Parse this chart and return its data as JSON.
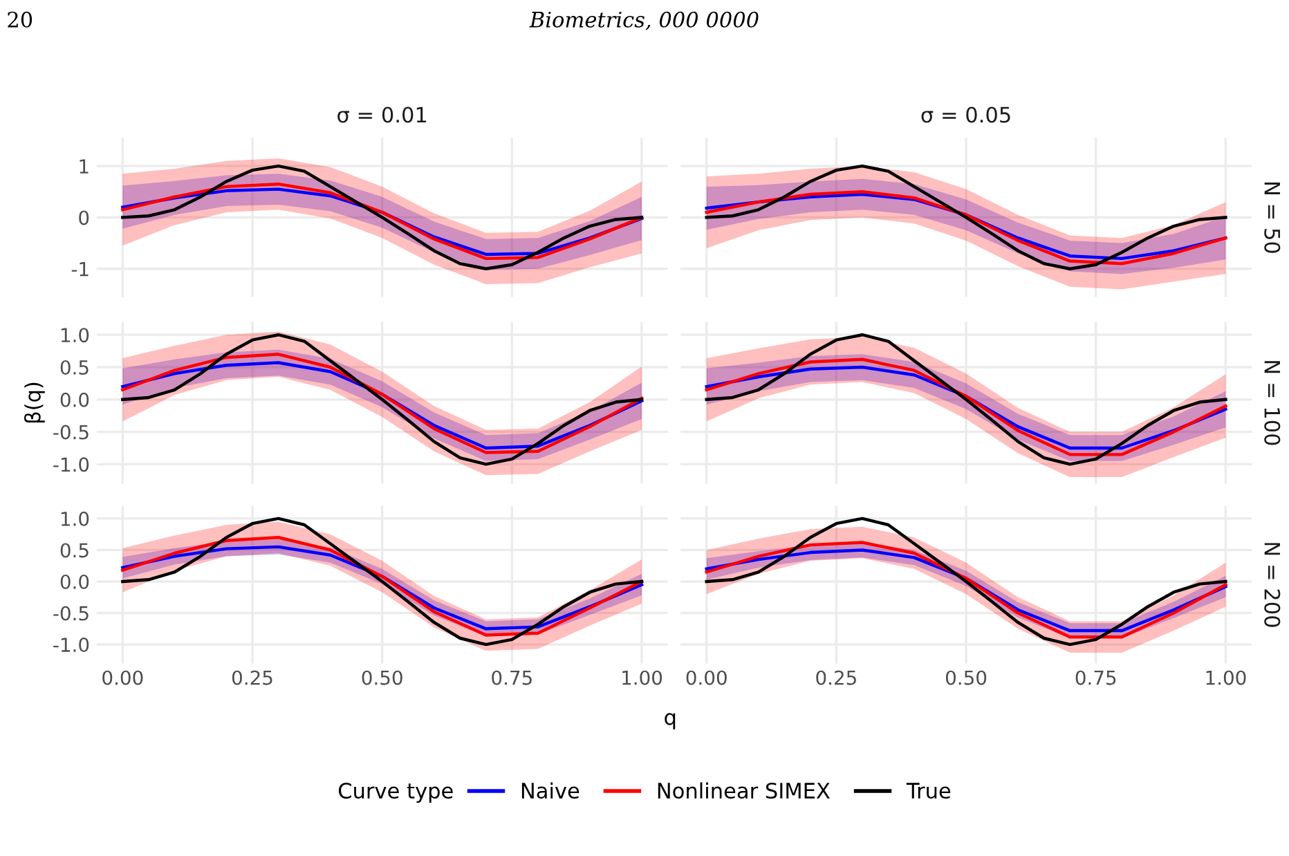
{
  "chart_data": [
    {
      "type": "line",
      "title": "σ = 0.01",
      "legend_title": "Curve type",
      "legend": "bottom",
      "annotations": [
        "20",
        "Biometrics, 000 0000"
      ],
      "x": [
        0,
        0.1,
        0.2,
        0.3,
        0.4,
        0.5,
        0.6,
        0.7,
        0.8,
        0.9,
        1
      ],
      "xlim": [
        -0.05,
        1.05
      ],
      "xticks": [
        {
          "value": 0,
          "label": null
        },
        {
          "value": 0.25,
          "label": null
        },
        {
          "value": 0.5,
          "label": null
        },
        {
          "value": 0.75,
          "label": null
        },
        {
          "value": 1,
          "label": null
        }
      ],
      "ylim": [
        -1.55,
        1.55
      ],
      "yticks": [
        -1,
        0,
        1
      ],
      "tick_labels": "y",
      "grid": true,
      "series": [
        {
          "name": "Naive",
          "color": "#0000ff",
          "values": [
            0.2,
            0.38,
            0.52,
            0.55,
            0.42,
            0.1,
            -0.38,
            -0.72,
            -0.7,
            -0.4,
            -0.02
          ],
          "lower": [
            -0.22,
            0.05,
            0.22,
            0.25,
            0.12,
            -0.2,
            -0.68,
            -1.02,
            -1.0,
            -0.73,
            -0.44
          ],
          "upper": [
            0.62,
            0.71,
            0.82,
            0.85,
            0.72,
            0.4,
            -0.08,
            -0.42,
            -0.4,
            -0.07,
            0.4
          ]
        },
        {
          "name": "Nonlinear SIMEX",
          "color": "#ff0000",
          "values": [
            0.15,
            0.4,
            0.6,
            0.65,
            0.48,
            0.1,
            -0.42,
            -0.8,
            -0.78,
            -0.42,
            0.0
          ],
          "lower": [
            -0.55,
            -0.15,
            0.1,
            0.15,
            -0.02,
            -0.4,
            -0.92,
            -1.3,
            -1.28,
            -0.97,
            -0.7
          ],
          "upper": [
            0.85,
            0.95,
            1.1,
            1.15,
            0.98,
            0.6,
            0.08,
            -0.3,
            -0.28,
            0.13,
            0.7
          ]
        },
        {
          "name": "True",
          "color": "#000000",
          "x": [
            0,
            0.05,
            0.1,
            0.15,
            0.2,
            0.25,
            0.3,
            0.35,
            0.4,
            0.45,
            0.5,
            0.55,
            0.6,
            0.65,
            0.7,
            0.75,
            0.8,
            0.85,
            0.9,
            0.95,
            1
          ],
          "values": [
            0,
            0.03,
            0.15,
            0.4,
            0.7,
            0.92,
            1.0,
            0.9,
            0.6,
            0.3,
            0,
            -0.32,
            -0.65,
            -0.9,
            -1.0,
            -0.92,
            -0.68,
            -0.4,
            -0.17,
            -0.04,
            0
          ]
        }
      ]
    },
    {
      "type": "line",
      "title": "σ = 0.05",
      "y2label": "N = 50",
      "x": [
        0,
        0.1,
        0.2,
        0.3,
        0.4,
        0.5,
        0.6,
        0.7,
        0.8,
        0.9,
        1
      ],
      "xlim": [
        -0.05,
        1.05
      ],
      "xticks": [
        {
          "value": 0,
          "label": null
        },
        {
          "value": 0.25,
          "label": null
        },
        {
          "value": 0.5,
          "label": null
        },
        {
          "value": 0.75,
          "label": null
        },
        {
          "value": 1,
          "label": null
        }
      ],
      "ylim": [
        -1.55,
        1.55
      ],
      "yticks": [
        {
          "value": -1,
          "label": null
        },
        {
          "value": 0,
          "label": null
        },
        {
          "value": 1,
          "label": null
        }
      ],
      "tick_labels": false,
      "grid": true,
      "series": [
        {
          "color": "#0000ff",
          "values": [
            0.18,
            0.3,
            0.4,
            0.45,
            0.35,
            0.05,
            -0.4,
            -0.75,
            -0.8,
            -0.65,
            -0.4
          ],
          "lower": [
            -0.24,
            -0.03,
            0.1,
            0.15,
            0.05,
            -0.25,
            -0.7,
            -1.05,
            -1.1,
            -0.98,
            -0.82
          ],
          "upper": [
            0.6,
            0.63,
            0.7,
            0.75,
            0.65,
            0.35,
            -0.1,
            -0.45,
            -0.5,
            -0.32,
            0.02
          ]
        },
        {
          "color": "#ff0000",
          "values": [
            0.1,
            0.3,
            0.45,
            0.5,
            0.38,
            0.05,
            -0.45,
            -0.85,
            -0.9,
            -0.7,
            -0.4
          ],
          "lower": [
            -0.6,
            -0.25,
            -0.05,
            0.0,
            -0.12,
            -0.45,
            -0.95,
            -1.35,
            -1.4,
            -1.25,
            -1.1
          ],
          "upper": [
            0.8,
            0.85,
            0.95,
            1.0,
            0.88,
            0.55,
            0.05,
            -0.35,
            -0.4,
            -0.15,
            0.3
          ]
        },
        {
          "color": "#000000",
          "x": [
            0,
            0.05,
            0.1,
            0.15,
            0.2,
            0.25,
            0.3,
            0.35,
            0.4,
            0.45,
            0.5,
            0.55,
            0.6,
            0.65,
            0.7,
            0.75,
            0.8,
            0.85,
            0.9,
            0.95,
            1
          ],
          "values": [
            0,
            0.03,
            0.15,
            0.4,
            0.7,
            0.92,
            1.0,
            0.9,
            0.6,
            0.3,
            0,
            -0.32,
            -0.65,
            -0.9,
            -1.0,
            -0.92,
            -0.68,
            -0.4,
            -0.17,
            -0.04,
            0
          ]
        }
      ]
    },
    {
      "type": "line",
      "ylabel": "β(q)",
      "x": [
        0,
        0.1,
        0.2,
        0.3,
        0.4,
        0.5,
        0.6,
        0.7,
        0.8,
        0.9,
        1
      ],
      "xlim": [
        -0.05,
        1.05
      ],
      "xticks": [
        {
          "value": 0,
          "label": null
        },
        {
          "value": 0.25,
          "label": null
        },
        {
          "value": 0.5,
          "label": null
        },
        {
          "value": 0.75,
          "label": null
        },
        {
          "value": 1,
          "label": null
        }
      ],
      "ylim": [
        -1.3,
        1.2
      ],
      "yticks": [
        {
          "value": -1,
          "label": "-1.0"
        },
        {
          "value": -0.5,
          "label": "-0.5"
        },
        {
          "value": 0,
          "label": "0.0"
        },
        {
          "value": 0.5,
          "label": "0.5"
        },
        {
          "value": 1,
          "label": "1.0"
        }
      ],
      "tick_labels": "y",
      "grid": true,
      "series": [
        {
          "color": "#0000ff",
          "values": [
            0.2,
            0.4,
            0.53,
            0.57,
            0.43,
            0.08,
            -0.4,
            -0.75,
            -0.72,
            -0.4,
            -0.02
          ],
          "lower": [
            -0.08,
            0.18,
            0.33,
            0.37,
            0.23,
            -0.12,
            -0.6,
            -0.95,
            -0.92,
            -0.62,
            -0.3
          ],
          "upper": [
            0.48,
            0.62,
            0.73,
            0.77,
            0.63,
            0.28,
            -0.2,
            -0.55,
            -0.52,
            -0.18,
            0.26
          ]
        },
        {
          "color": "#ff0000",
          "values": [
            0.15,
            0.45,
            0.65,
            0.7,
            0.5,
            0.08,
            -0.45,
            -0.82,
            -0.8,
            -0.42,
            0.02
          ],
          "lower": [
            -0.34,
            0.07,
            0.3,
            0.35,
            0.15,
            -0.27,
            -0.8,
            -1.17,
            -1.15,
            -0.8,
            -0.47
          ],
          "upper": [
            0.64,
            0.83,
            1.0,
            1.05,
            0.85,
            0.43,
            -0.1,
            -0.47,
            -0.45,
            -0.04,
            0.51
          ]
        },
        {
          "color": "#000000",
          "x": [
            0,
            0.05,
            0.1,
            0.15,
            0.2,
            0.25,
            0.3,
            0.35,
            0.4,
            0.45,
            0.5,
            0.55,
            0.6,
            0.65,
            0.7,
            0.75,
            0.8,
            0.85,
            0.9,
            0.95,
            1
          ],
          "values": [
            0,
            0.03,
            0.15,
            0.4,
            0.7,
            0.92,
            1.0,
            0.9,
            0.6,
            0.3,
            0,
            -0.32,
            -0.65,
            -0.9,
            -1.0,
            -0.92,
            -0.68,
            -0.4,
            -0.17,
            -0.04,
            0
          ]
        }
      ]
    },
    {
      "type": "line",
      "y2label": "N = 100",
      "x": [
        0,
        0.1,
        0.2,
        0.3,
        0.4,
        0.5,
        0.6,
        0.7,
        0.8,
        0.9,
        1
      ],
      "xlim": [
        -0.05,
        1.05
      ],
      "xticks": [
        {
          "value": 0,
          "label": null
        },
        {
          "value": 0.25,
          "label": null
        },
        {
          "value": 0.5,
          "label": null
        },
        {
          "value": 0.75,
          "label": null
        },
        {
          "value": 1,
          "label": null
        }
      ],
      "ylim": [
        -1.3,
        1.2
      ],
      "yticks": [
        {
          "value": -1,
          "label": null
        },
        {
          "value": -0.5,
          "label": null
        },
        {
          "value": 0,
          "label": null
        },
        {
          "value": 0.5,
          "label": null
        },
        {
          "value": 1,
          "label": null
        }
      ],
      "tick_labels": false,
      "grid": true,
      "series": [
        {
          "color": "#0000ff",
          "values": [
            0.2,
            0.35,
            0.47,
            0.5,
            0.38,
            0.05,
            -0.42,
            -0.75,
            -0.75,
            -0.48,
            -0.15
          ],
          "lower": [
            -0.08,
            0.13,
            0.27,
            0.3,
            0.18,
            -0.15,
            -0.62,
            -0.95,
            -0.95,
            -0.7,
            -0.43
          ],
          "upper": [
            0.48,
            0.57,
            0.67,
            0.7,
            0.58,
            0.25,
            -0.22,
            -0.55,
            -0.55,
            -0.26,
            0.13
          ]
        },
        {
          "color": "#ff0000",
          "values": [
            0.15,
            0.4,
            0.58,
            0.62,
            0.45,
            0.05,
            -0.48,
            -0.85,
            -0.85,
            -0.5,
            -0.1
          ],
          "lower": [
            -0.34,
            0.02,
            0.23,
            0.27,
            0.1,
            -0.3,
            -0.83,
            -1.2,
            -1.2,
            -0.89,
            -0.59
          ],
          "upper": [
            0.64,
            0.79,
            0.93,
            0.97,
            0.8,
            0.4,
            -0.13,
            -0.5,
            -0.5,
            -0.12,
            0.39
          ]
        },
        {
          "color": "#000000",
          "x": [
            0,
            0.05,
            0.1,
            0.15,
            0.2,
            0.25,
            0.3,
            0.35,
            0.4,
            0.45,
            0.5,
            0.55,
            0.6,
            0.65,
            0.7,
            0.75,
            0.8,
            0.85,
            0.9,
            0.95,
            1
          ],
          "values": [
            0,
            0.03,
            0.15,
            0.4,
            0.7,
            0.92,
            1.0,
            0.9,
            0.6,
            0.3,
            0,
            -0.32,
            -0.65,
            -0.9,
            -1.0,
            -0.92,
            -0.68,
            -0.4,
            -0.17,
            -0.04,
            0
          ]
        }
      ]
    },
    {
      "type": "line",
      "xlabel": "q",
      "x": [
        0,
        0.1,
        0.2,
        0.3,
        0.4,
        0.5,
        0.6,
        0.7,
        0.8,
        0.9,
        1
      ],
      "xlim": [
        -0.05,
        1.05
      ],
      "xticks": [
        {
          "value": 0,
          "label": "0.00"
        },
        {
          "value": 0.25,
          "label": "0.25"
        },
        {
          "value": 0.5,
          "label": "0.50"
        },
        {
          "value": 0.75,
          "label": "0.75"
        },
        {
          "value": 1,
          "label": "1.00"
        }
      ],
      "ylim": [
        -1.3,
        1.2
      ],
      "yticks": [
        {
          "value": -1,
          "label": "-1.0"
        },
        {
          "value": -0.5,
          "label": "-0.5"
        },
        {
          "value": 0,
          "label": "0.0"
        },
        {
          "value": 0.5,
          "label": "0.5"
        },
        {
          "value": 1,
          "label": "1.0"
        }
      ],
      "grid": true,
      "series": [
        {
          "color": "#0000ff",
          "values": [
            0.22,
            0.4,
            0.52,
            0.55,
            0.42,
            0.08,
            -0.42,
            -0.75,
            -0.72,
            -0.4,
            -0.05
          ],
          "lower": [
            0.05,
            0.27,
            0.4,
            0.43,
            0.3,
            -0.04,
            -0.54,
            -0.87,
            -0.84,
            -0.53,
            -0.22
          ],
          "upper": [
            0.39,
            0.53,
            0.64,
            0.67,
            0.54,
            0.2,
            -0.3,
            -0.63,
            -0.6,
            -0.27,
            0.12
          ]
        },
        {
          "color": "#ff0000",
          "values": [
            0.18,
            0.45,
            0.65,
            0.7,
            0.5,
            0.08,
            -0.48,
            -0.85,
            -0.82,
            -0.42,
            0.0
          ],
          "lower": [
            -0.17,
            0.17,
            0.4,
            0.45,
            0.25,
            -0.17,
            -0.73,
            -1.1,
            -1.07,
            -0.7,
            -0.35
          ],
          "upper": [
            0.53,
            0.73,
            0.9,
            0.95,
            0.75,
            0.33,
            -0.23,
            -0.6,
            -0.57,
            -0.14,
            0.35
          ]
        },
        {
          "color": "#000000",
          "x": [
            0,
            0.05,
            0.1,
            0.15,
            0.2,
            0.25,
            0.3,
            0.35,
            0.4,
            0.45,
            0.5,
            0.55,
            0.6,
            0.65,
            0.7,
            0.75,
            0.8,
            0.85,
            0.9,
            0.95,
            1
          ],
          "values": [
            0,
            0.03,
            0.15,
            0.4,
            0.7,
            0.92,
            1.0,
            0.9,
            0.6,
            0.3,
            0,
            -0.32,
            -0.65,
            -0.9,
            -1.0,
            -0.92,
            -0.68,
            -0.4,
            -0.17,
            -0.04,
            0
          ]
        }
      ]
    },
    {
      "type": "line",
      "y2label": "N = 200",
      "x": [
        0,
        0.1,
        0.2,
        0.3,
        0.4,
        0.5,
        0.6,
        0.7,
        0.8,
        0.9,
        1
      ],
      "xlim": [
        -0.05,
        1.05
      ],
      "xticks": [
        {
          "value": 0,
          "label": "0.00"
        },
        {
          "value": 0.25,
          "label": "0.25"
        },
        {
          "value": 0.5,
          "label": "0.50"
        },
        {
          "value": 0.75,
          "label": "0.75"
        },
        {
          "value": 1,
          "label": "1.00"
        }
      ],
      "ylim": [
        -1.3,
        1.2
      ],
      "yticks": [
        {
          "value": -1,
          "label": null
        },
        {
          "value": -0.5,
          "label": null
        },
        {
          "value": 0,
          "label": null
        },
        {
          "value": 0.5,
          "label": null
        },
        {
          "value": 1,
          "label": null
        }
      ],
      "tick_labels": "x",
      "grid": true,
      "series": [
        {
          "color": "#0000ff",
          "values": [
            0.2,
            0.35,
            0.46,
            0.5,
            0.38,
            0.05,
            -0.45,
            -0.78,
            -0.78,
            -0.45,
            -0.08
          ],
          "lower": [
            0.03,
            0.22,
            0.34,
            0.38,
            0.26,
            -0.07,
            -0.57,
            -0.9,
            -0.9,
            -0.58,
            -0.25
          ],
          "upper": [
            0.37,
            0.48,
            0.58,
            0.62,
            0.5,
            0.17,
            -0.33,
            -0.66,
            -0.66,
            -0.32,
            0.09
          ]
        },
        {
          "color": "#ff0000",
          "values": [
            0.15,
            0.4,
            0.58,
            0.62,
            0.45,
            0.05,
            -0.5,
            -0.88,
            -0.88,
            -0.5,
            -0.05
          ],
          "lower": [
            -0.2,
            0.12,
            0.33,
            0.37,
            0.2,
            -0.2,
            -0.75,
            -1.13,
            -1.13,
            -0.78,
            -0.4
          ],
          "upper": [
            0.5,
            0.68,
            0.83,
            0.87,
            0.7,
            0.3,
            -0.25,
            -0.63,
            -0.63,
            -0.22,
            0.3
          ]
        },
        {
          "color": "#000000",
          "x": [
            0,
            0.05,
            0.1,
            0.15,
            0.2,
            0.25,
            0.3,
            0.35,
            0.4,
            0.45,
            0.5,
            0.55,
            0.6,
            0.65,
            0.7,
            0.75,
            0.8,
            0.85,
            0.9,
            0.95,
            1
          ],
          "values": [
            0,
            0.03,
            0.15,
            0.4,
            0.7,
            0.92,
            1.0,
            0.9,
            0.6,
            0.3,
            0,
            -0.32,
            -0.65,
            -0.9,
            -1.0,
            -0.92,
            -0.68,
            -0.4,
            -0.17,
            -0.04,
            0
          ]
        }
      ]
    }
  ]
}
